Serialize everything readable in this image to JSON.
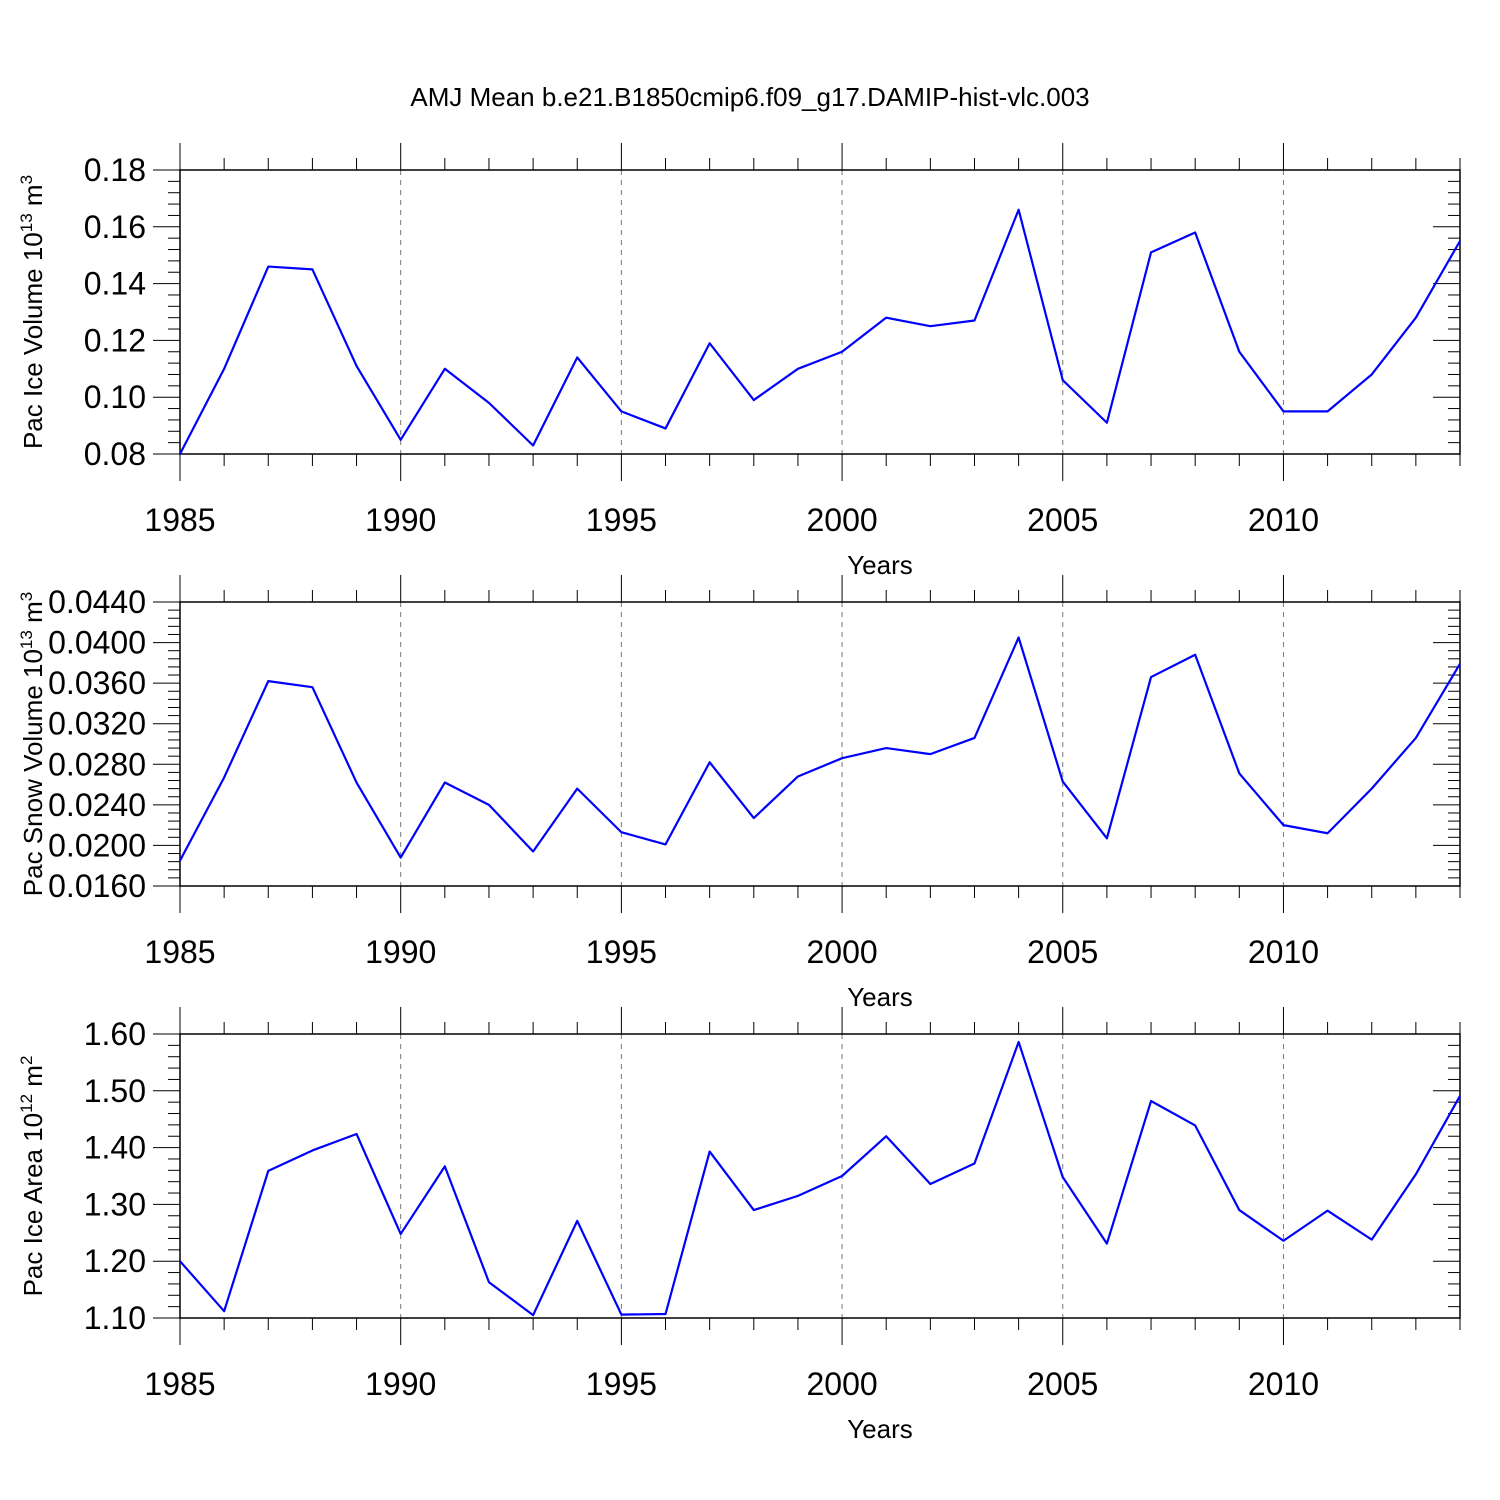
{
  "title": "AMJ Mean b.e21.B1850cmip6.f09_g17.DAMIP-hist-vlc.003",
  "colors": {
    "line": "#0000ff",
    "axis": "#000000",
    "grid": "#777777"
  },
  "chart_data": [
    {
      "type": "line",
      "id": "ice-volume",
      "xlabel": "Years",
      "ylabel": {
        "text": "Pac Ice Volume 10",
        "sup1": "13",
        "mid": " m",
        "sup2": "3"
      },
      "xlim": [
        1985,
        2014
      ],
      "ylim": [
        0.08,
        0.18
      ],
      "xticks": [
        1985,
        1990,
        1995,
        2000,
        2005,
        2010
      ],
      "yticks": [
        0.08,
        0.1,
        0.12,
        0.14,
        0.16,
        0.18
      ],
      "ytick_labels": [
        "0.08",
        "0.10",
        "0.12",
        "0.14",
        "0.16",
        "0.18"
      ],
      "x": [
        1985,
        1986,
        1987,
        1988,
        1989,
        1990,
        1991,
        1992,
        1993,
        1994,
        1995,
        1996,
        1997,
        1998,
        1999,
        2000,
        2001,
        2002,
        2003,
        2004,
        2005,
        2006,
        2007,
        2008,
        2009,
        2010,
        2011,
        2012,
        2013,
        2014
      ],
      "values": [
        0.08,
        0.11,
        0.146,
        0.145,
        0.111,
        0.085,
        0.11,
        0.098,
        0.083,
        0.114,
        0.095,
        0.089,
        0.119,
        0.099,
        0.11,
        0.116,
        0.128,
        0.125,
        0.127,
        0.166,
        0.106,
        0.091,
        0.151,
        0.158,
        0.116,
        0.095,
        0.095,
        0.108,
        0.128,
        0.155
      ]
    },
    {
      "type": "line",
      "id": "snow-volume",
      "xlabel": "Years",
      "ylabel": {
        "text": "Pac Snow Volume 10",
        "sup1": "13",
        "mid": " m",
        "sup2": "3"
      },
      "xlim": [
        1985,
        2014
      ],
      "ylim": [
        0.016,
        0.044
      ],
      "xticks": [
        1985,
        1990,
        1995,
        2000,
        2005,
        2010
      ],
      "yticks": [
        0.016,
        0.02,
        0.024,
        0.028,
        0.032,
        0.036,
        0.04,
        0.044
      ],
      "ytick_labels": [
        "0.0160",
        "0.0200",
        "0.0240",
        "0.0280",
        "0.0320",
        "0.0360",
        "0.0400",
        "0.0440"
      ],
      "x": [
        1985,
        1986,
        1987,
        1988,
        1989,
        1990,
        1991,
        1992,
        1993,
        1994,
        1995,
        1996,
        1997,
        1998,
        1999,
        2000,
        2001,
        2002,
        2003,
        2004,
        2005,
        2006,
        2007,
        2008,
        2009,
        2010,
        2011,
        2012,
        2013,
        2014
      ],
      "values": [
        0.0185,
        0.0267,
        0.0362,
        0.0356,
        0.0262,
        0.0188,
        0.0262,
        0.024,
        0.0194,
        0.0256,
        0.0213,
        0.0201,
        0.0282,
        0.0227,
        0.0268,
        0.0286,
        0.0296,
        0.029,
        0.0306,
        0.0405,
        0.0263,
        0.0207,
        0.0366,
        0.0388,
        0.0271,
        0.022,
        0.0212,
        0.0256,
        0.0306,
        0.0379
      ]
    },
    {
      "type": "line",
      "id": "ice-area",
      "xlabel": "Years",
      "ylabel": {
        "text": "Pac Ice Area 10",
        "sup1": "12",
        "mid": " m",
        "sup2": "2"
      },
      "xlim": [
        1985,
        2014
      ],
      "ylim": [
        1.1,
        1.6
      ],
      "xticks": [
        1985,
        1990,
        1995,
        2000,
        2005,
        2010
      ],
      "yticks": [
        1.1,
        1.2,
        1.3,
        1.4,
        1.5,
        1.6
      ],
      "ytick_labels": [
        "1.10",
        "1.20",
        "1.30",
        "1.40",
        "1.50",
        "1.60"
      ],
      "x": [
        1985,
        1986,
        1987,
        1988,
        1989,
        1990,
        1991,
        1992,
        1993,
        1994,
        1995,
        1996,
        1997,
        1998,
        1999,
        2000,
        2001,
        2002,
        2003,
        2004,
        2005,
        2006,
        2007,
        2008,
        2009,
        2010,
        2011,
        2012,
        2013,
        2014
      ],
      "values": [
        1.2,
        1.112,
        1.359,
        1.395,
        1.424,
        1.248,
        1.367,
        1.163,
        1.105,
        1.271,
        1.106,
        1.107,
        1.393,
        1.29,
        1.315,
        1.35,
        1.42,
        1.336,
        1.372,
        1.586,
        1.348,
        1.231,
        1.482,
        1.439,
        1.29,
        1.236,
        1.289,
        1.238,
        1.353,
        1.491
      ]
    }
  ]
}
